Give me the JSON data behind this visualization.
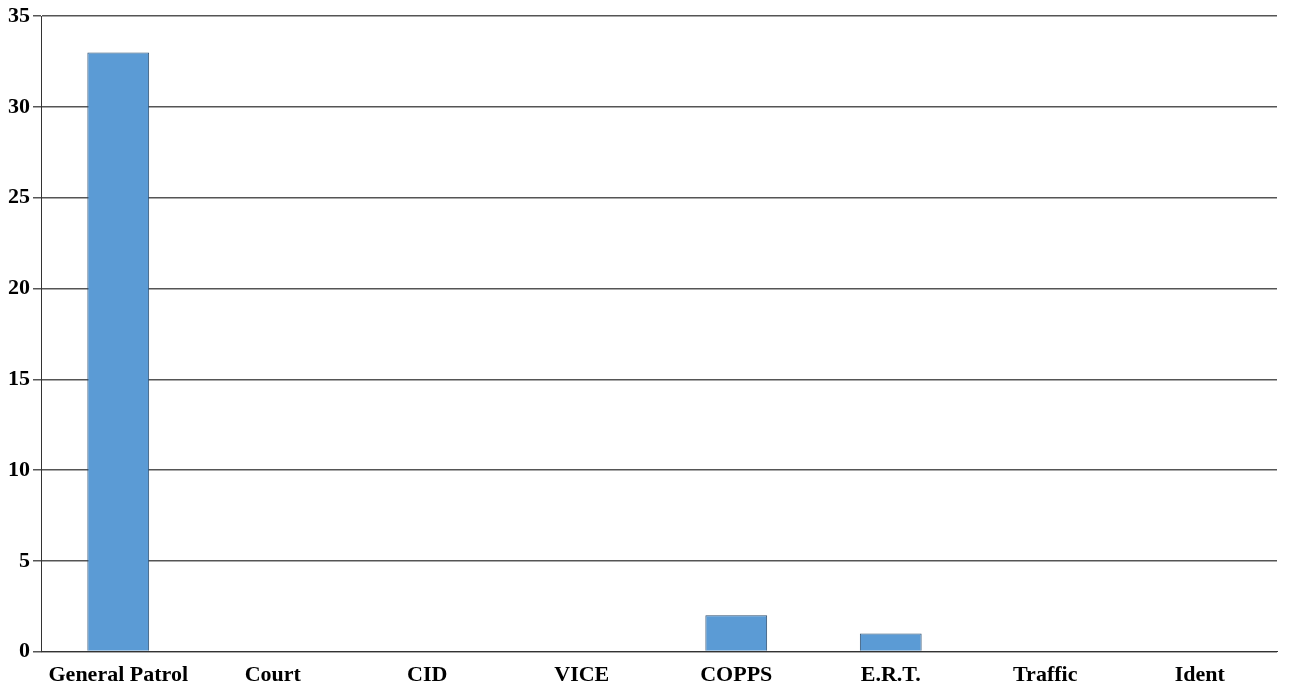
{
  "chart_data": {
    "type": "bar",
    "categories": [
      "General Patrol",
      "Court",
      "CID",
      "VICE",
      "COPPS",
      "E.R.T.",
      "Traffic",
      "Ident"
    ],
    "values": [
      33,
      0,
      0,
      0,
      2,
      1,
      0,
      0
    ],
    "color": "#5b9bd5",
    "ylim": [
      0,
      35
    ],
    "yticks": [
      0,
      5,
      10,
      15,
      20,
      25,
      30,
      35
    ],
    "grid": "y",
    "legend": false
  }
}
